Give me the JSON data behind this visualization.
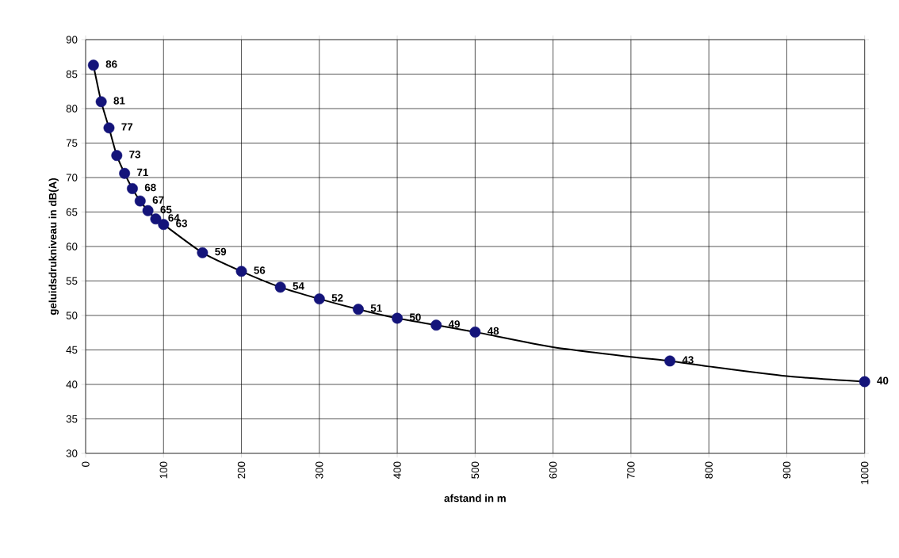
{
  "chart_data": {
    "type": "scatter",
    "xlabel": "afstand in m",
    "ylabel": "geluidsdrukniveau in dB(A)",
    "x": [
      10,
      20,
      30,
      40,
      50,
      60,
      70,
      80,
      90,
      100,
      150,
      200,
      250,
      300,
      350,
      400,
      450,
      500,
      750,
      1000
    ],
    "series": [
      {
        "type": "line",
        "color": "#000000",
        "marker": "none",
        "x": [
          10,
          20,
          30,
          40,
          50,
          60,
          70,
          80,
          90,
          100,
          150,
          200,
          250,
          300,
          350,
          400,
          450,
          500,
          600,
          700,
          750,
          800,
          900,
          1000
        ],
        "values": [
          86.3,
          81.0,
          77.2,
          73.2,
          70.6,
          68.4,
          66.6,
          65.2,
          64.0,
          63.2,
          59.1,
          56.4,
          54.1,
          52.4,
          50.9,
          49.6,
          48.6,
          47.6,
          45.4,
          44.0,
          43.4,
          42.6,
          41.2,
          40.4
        ]
      },
      {
        "color": "#14147a",
        "marker": "circle",
        "values": [
          86.3,
          81.0,
          77.2,
          73.2,
          70.6,
          68.4,
          66.6,
          65.2,
          64.0,
          63.2,
          59.1,
          56.4,
          54.1,
          52.4,
          50.9,
          49.6,
          48.6,
          47.6,
          43.4,
          40.4
        ],
        "value_labels": [
          "86",
          "81",
          "77",
          "73",
          "71",
          "68",
          "67",
          "65",
          "64",
          "63",
          "59",
          "56",
          "54",
          "52",
          "51",
          "50",
          "49",
          "48",
          "43",
          "40"
        ]
      }
    ],
    "xlim": [
      0,
      1000
    ],
    "ylim": [
      30,
      90
    ],
    "xticks": [
      0,
      100,
      200,
      300,
      400,
      500,
      600,
      700,
      800,
      900,
      1000
    ],
    "yticks": [
      30,
      35,
      40,
      45,
      50,
      55,
      60,
      65,
      70,
      75,
      80,
      85,
      90
    ],
    "grid": true,
    "legend": false
  }
}
